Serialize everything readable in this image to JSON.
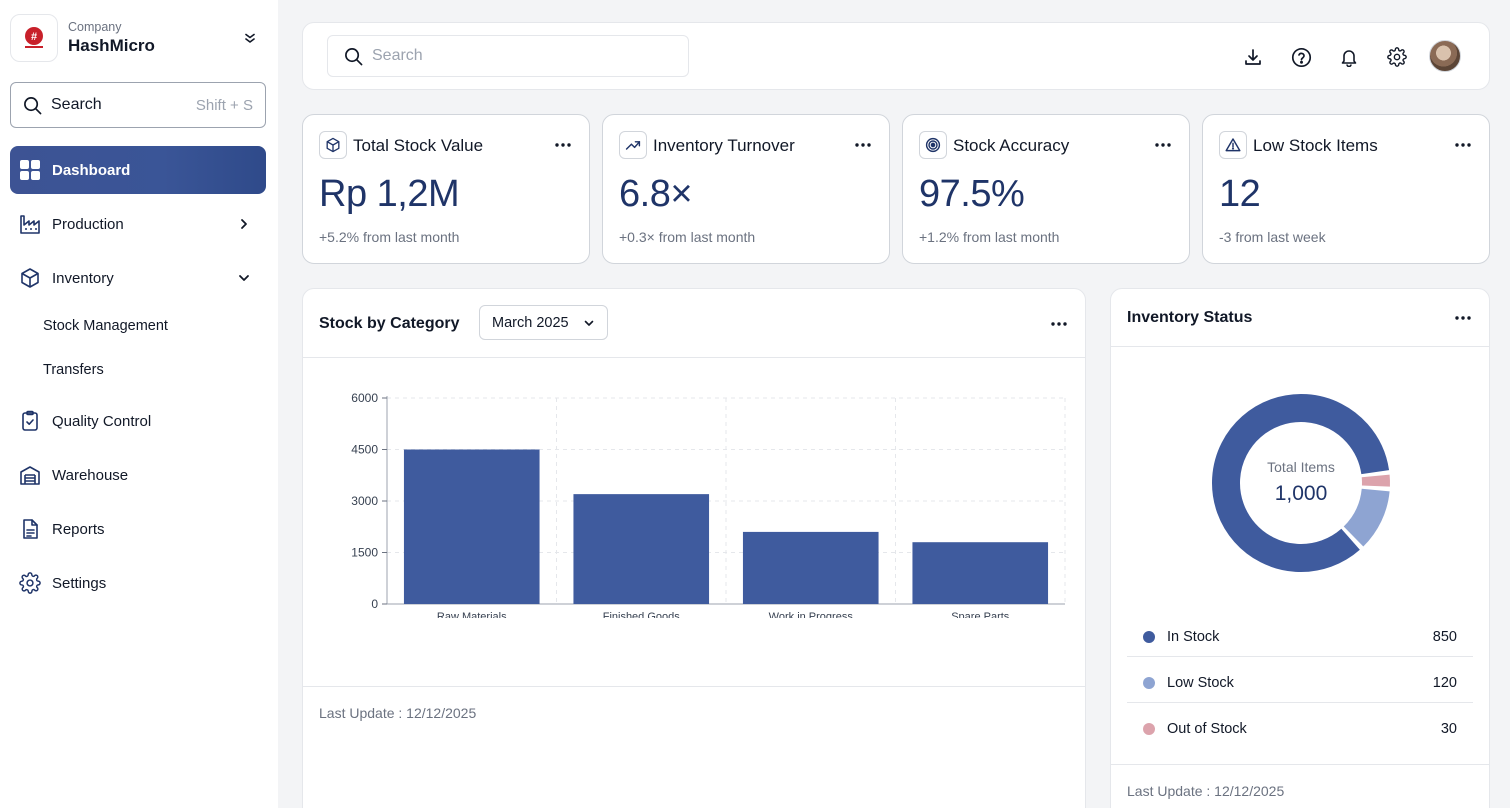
{
  "company": {
    "label": "Company",
    "name": "HashMicro"
  },
  "sidebar": {
    "search_label": "Search",
    "search_shortcut": "Shift + S",
    "items": [
      {
        "label": "Dashboard",
        "icon": "dashboard-icon"
      },
      {
        "label": "Production",
        "icon": "factory-icon"
      },
      {
        "label": "Inventory",
        "icon": "box-icon"
      },
      {
        "label": "Quality Control",
        "icon": "clipboard-check-icon"
      },
      {
        "label": "Warehouse",
        "icon": "warehouse-icon"
      },
      {
        "label": "Reports",
        "icon": "document-icon"
      },
      {
        "label": "Settings",
        "icon": "gear-icon"
      }
    ],
    "inventory_sub": [
      "Stock Management",
      "Transfers"
    ]
  },
  "topbar": {
    "search_placeholder": "Search"
  },
  "kpis": [
    {
      "title": "Total Stock Value",
      "value": "Rp 1,2M",
      "sub": "+5.2% from last month",
      "icon": "cube-icon"
    },
    {
      "title": "Inventory Turnover",
      "value": "6.8×",
      "sub": "+0.3× from last month",
      "icon": "trend-up-icon"
    },
    {
      "title": "Stock Accuracy",
      "value": "97.5%",
      "sub": "+1.2% from last month",
      "icon": "target-icon"
    },
    {
      "title": "Low Stock Items",
      "value": "12",
      "sub": "-3 from last week",
      "icon": "warning-icon"
    }
  ],
  "stock_panel": {
    "title": "Stock by Category",
    "month": "March 2025",
    "last_update": "Last Update : 12/12/2025"
  },
  "status_panel": {
    "title": "Inventory Status",
    "center_label": "Total Items",
    "center_value": "1,000",
    "legend": [
      {
        "label": "In Stock",
        "value": "850"
      },
      {
        "label": "Low Stock",
        "value": "120"
      },
      {
        "label": "Out of Stock",
        "value": "30"
      }
    ],
    "last_update": "Last Update : 12/12/2025"
  },
  "colors": {
    "primary": "#3f5b9e",
    "light": "#8ea4d2",
    "pink": "#dca3ac",
    "navy": "#1f3468"
  },
  "chart_data": [
    {
      "type": "bar",
      "categories": [
        "Raw Materials",
        "Finished Goods",
        "Work in Progress",
        "Spare Parts"
      ],
      "values": [
        4500,
        3200,
        2100,
        1800
      ],
      "ylim": [
        0,
        6000
      ],
      "yticks": [
        0,
        1500,
        3000,
        4500,
        6000
      ],
      "grid": true
    },
    {
      "type": "pie",
      "labels": [
        "In Stock",
        "Low Stock",
        "Out of Stock"
      ],
      "values": [
        850,
        120,
        30
      ],
      "colors": [
        "#3f5b9e",
        "#8ea4d2",
        "#dca3ac"
      ]
    }
  ]
}
